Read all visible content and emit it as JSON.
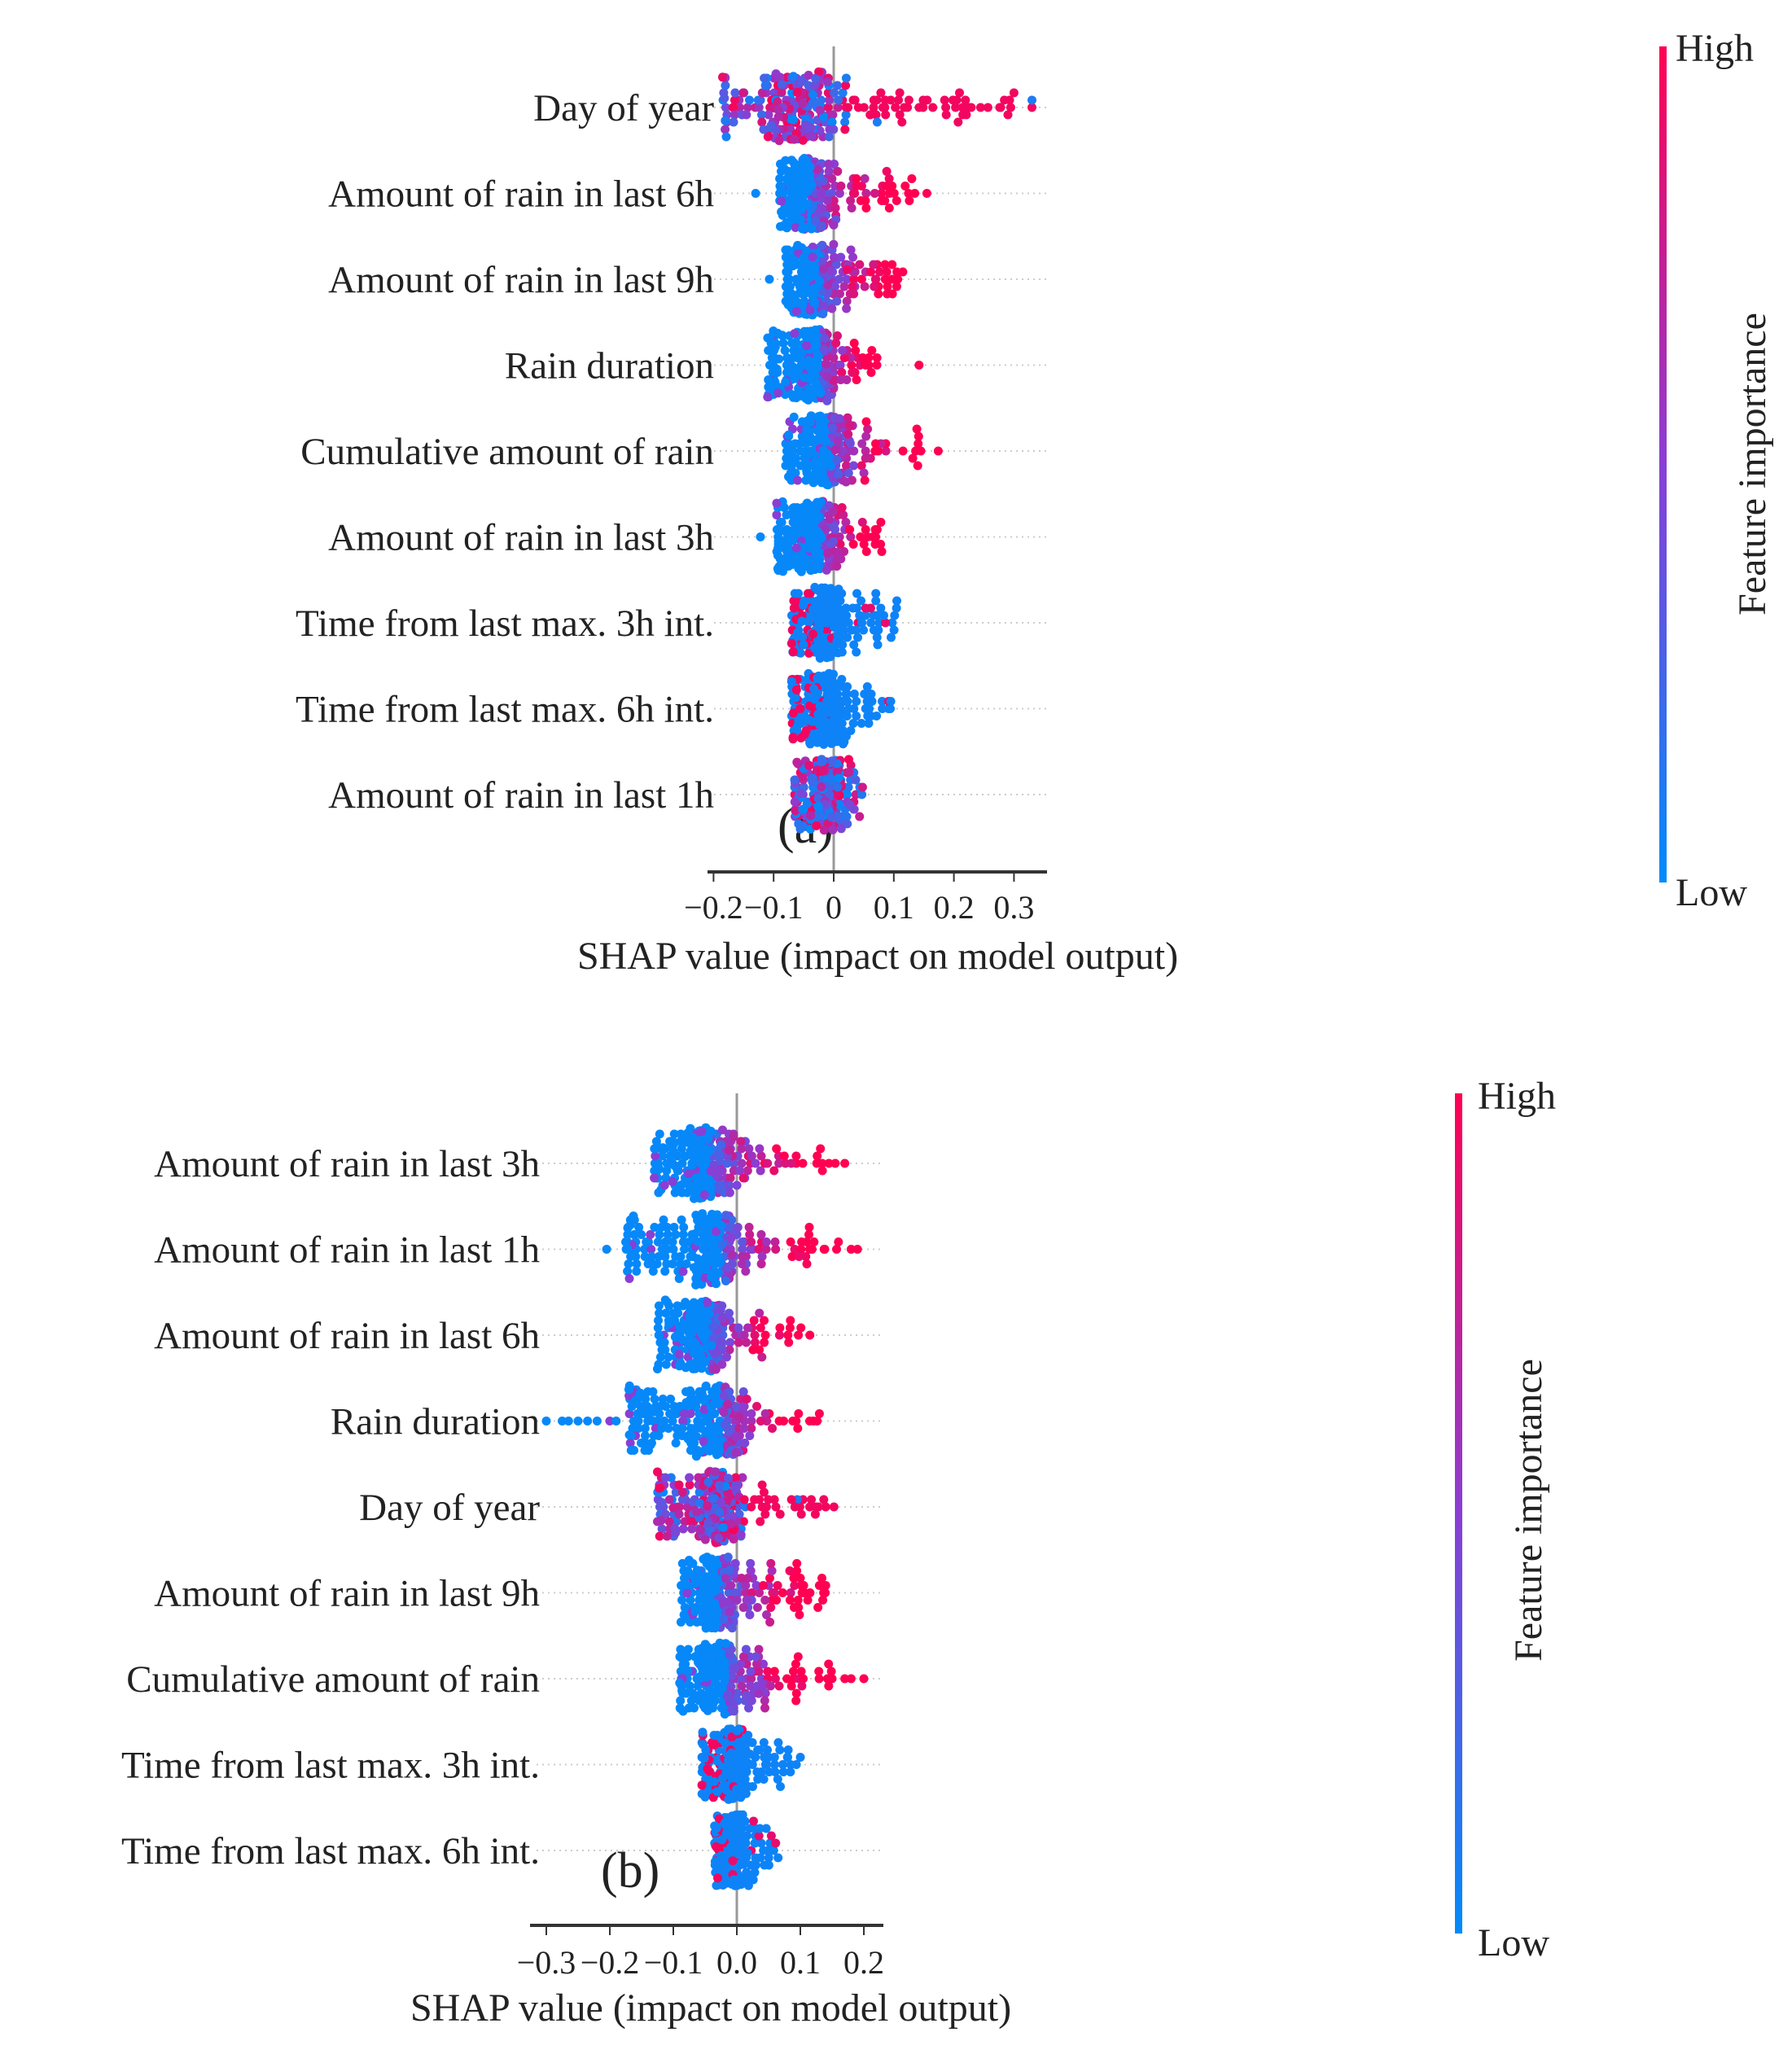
{
  "chart_data": [
    {
      "type": "scatter",
      "subtype": "shap-beeswarm",
      "panel_label": "(a)",
      "xlabel": "SHAP value (impact on model output)",
      "xticks": [
        -0.2,
        -0.1,
        0,
        0.1,
        0.2,
        0.3
      ],
      "xtick_labels": [
        "−0.2",
        "−0.1",
        "0",
        "0.1",
        "0.2",
        "0.3"
      ],
      "xlim": [
        -0.21,
        0.35
      ],
      "colorbar": {
        "title": "Feature importance",
        "high": "High",
        "low": "Low"
      },
      "features": [
        {
          "name": "Day of year",
          "min": -0.185,
          "max": 0.33,
          "peak": -0.06,
          "spread": 0.035,
          "color_mode": "doy",
          "outliers": [
            0.29,
            0.3,
            0.33
          ]
        },
        {
          "name": "Amount of rain in last 6h",
          "min": -0.09,
          "max": 0.13,
          "peak": -0.045,
          "spread": 0.018,
          "color_mode": "pos",
          "outliers": [
            -0.13,
            0.135,
            0.155
          ]
        },
        {
          "name": "Amount of rain in last 9h",
          "min": -0.08,
          "max": 0.115,
          "peak": -0.03,
          "spread": 0.015,
          "color_mode": "pos",
          "outliers": [
            -0.107
          ]
        },
        {
          "name": "Rain duration",
          "min": -0.11,
          "max": 0.072,
          "peak": -0.03,
          "spread": 0.018,
          "color_mode": "pos",
          "outliers": [
            0.142
          ]
        },
        {
          "name": "Cumulative amount of rain",
          "min": -0.08,
          "max": 0.145,
          "peak": -0.015,
          "spread": 0.02,
          "color_mode": "pos",
          "outliers": [
            0.174
          ]
        },
        {
          "name": "Amount of rain in last 3h",
          "min": -0.095,
          "max": 0.08,
          "peak": -0.03,
          "spread": 0.02,
          "color_mode": "pos",
          "outliers": [
            -0.122
          ]
        },
        {
          "name": "Time from last max. 3h int.",
          "min": -0.07,
          "max": 0.105,
          "peak": -0.015,
          "spread": 0.012,
          "color_mode": "time",
          "outliers": []
        },
        {
          "name": "Time from last max. 6h int.",
          "min": -0.07,
          "max": 0.095,
          "peak": -0.015,
          "spread": 0.012,
          "color_mode": "time",
          "outliers": []
        },
        {
          "name": "Amount of rain in last 1h",
          "min": -0.065,
          "max": 0.048,
          "peak": -0.007,
          "spread": 0.012,
          "color_mode": "mix",
          "outliers": []
        }
      ]
    },
    {
      "type": "scatter",
      "subtype": "shap-beeswarm",
      "panel_label": "(b)",
      "xlabel": "SHAP value (impact on model output)",
      "xticks": [
        -0.3,
        -0.2,
        -0.1,
        0.0,
        0.1,
        0.2
      ],
      "xtick_labels": [
        "−0.3",
        "−0.2",
        "−0.1",
        "0.0",
        "0.1",
        "0.2"
      ],
      "xlim": [
        -0.325,
        0.23
      ],
      "colorbar": {
        "title": "Feature importance",
        "high": "High",
        "low": "Low"
      },
      "features": [
        {
          "name": "Amount of rain in last 3h",
          "min": -0.13,
          "max": 0.145,
          "peak": -0.05,
          "spread": 0.02,
          "color_mode": "pos",
          "outliers": [
            0.155,
            0.17
          ]
        },
        {
          "name": "Amount of rain in last 1h",
          "min": -0.175,
          "max": 0.16,
          "peak": -0.035,
          "spread": 0.022,
          "color_mode": "pos",
          "outliers": [
            -0.205,
            0.18,
            0.19
          ]
        },
        {
          "name": "Amount of rain in last 6h",
          "min": -0.125,
          "max": 0.115,
          "peak": -0.05,
          "spread": 0.02,
          "color_mode": "pos",
          "outliers": []
        },
        {
          "name": "Rain duration",
          "min": -0.17,
          "max": 0.13,
          "peak": -0.035,
          "spread": 0.025,
          "color_mode": "pos",
          "outliers": [
            -0.3,
            -0.275,
            -0.265,
            -0.25,
            -0.235,
            -0.22,
            -0.2,
            -0.19
          ]
        },
        {
          "name": "Day of year",
          "min": -0.125,
          "max": 0.14,
          "peak": -0.025,
          "spread": 0.018,
          "color_mode": "doy",
          "outliers": [
            0.153
          ]
        },
        {
          "name": "Amount of rain in last 9h",
          "min": -0.088,
          "max": 0.14,
          "peak": -0.035,
          "spread": 0.017,
          "color_mode": "pos",
          "outliers": []
        },
        {
          "name": "Cumulative amount of rain",
          "min": -0.09,
          "max": 0.15,
          "peak": -0.025,
          "spread": 0.018,
          "color_mode": "pos",
          "outliers": [
            0.17,
            0.18,
            0.2
          ]
        },
        {
          "name": "Time from last max. 3h int.",
          "min": -0.055,
          "max": 0.1,
          "peak": -0.007,
          "spread": 0.01,
          "color_mode": "time",
          "outliers": []
        },
        {
          "name": "Time from last max. 6h int.",
          "min": -0.035,
          "max": 0.065,
          "peak": -0.007,
          "spread": 0.008,
          "color_mode": "time",
          "outliers": []
        }
      ]
    }
  ],
  "colors": {
    "low": "#008bfb",
    "high": "#ff0052",
    "axis": "#333333",
    "zero_line": "#999999",
    "grid": "#cccccc"
  }
}
